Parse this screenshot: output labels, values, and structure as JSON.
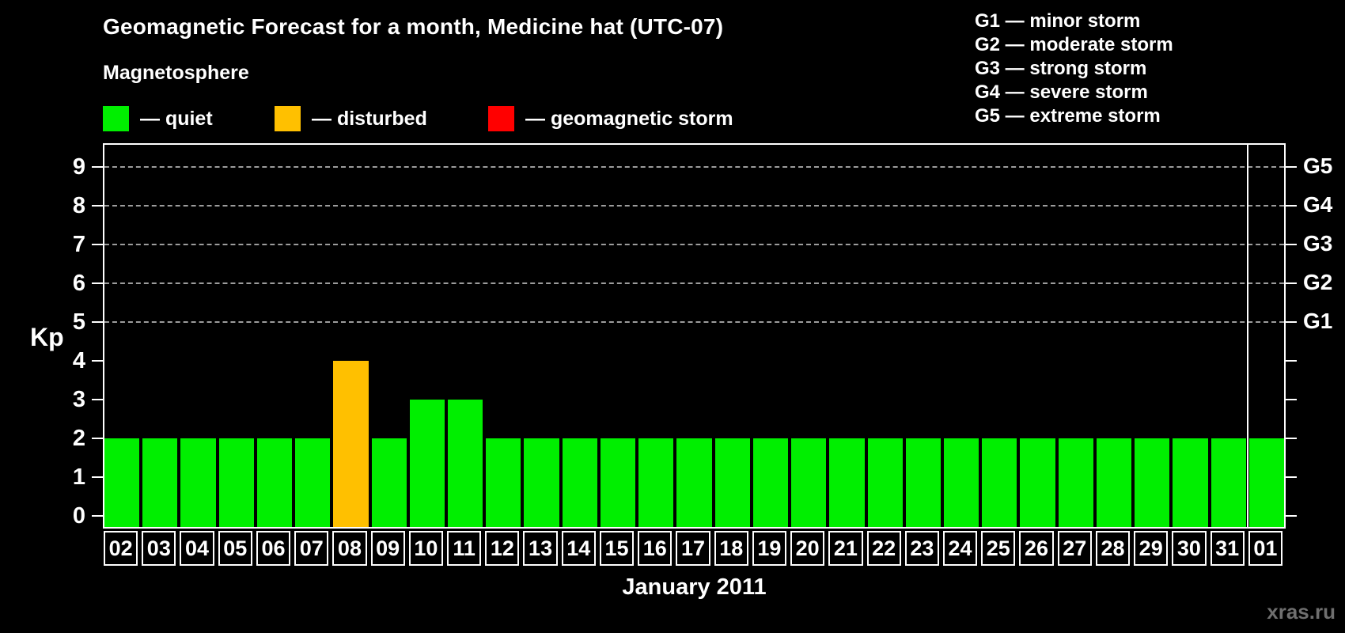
{
  "header": {
    "title": "Geomagnetic Forecast for a month, Medicine hat (UTC-07)",
    "subtitle": "Magnetosphere"
  },
  "legend": {
    "items": [
      {
        "label": "— quiet",
        "color": "#00ef00"
      },
      {
        "label": "— disturbed",
        "color": "#ffc000"
      },
      {
        "label": "— geomagnetic storm",
        "color": "#ff0000"
      }
    ]
  },
  "g_legend": {
    "items": [
      "G1 — minor storm",
      "G2 — moderate storm",
      "G3 — strong storm",
      "G4 — severe storm",
      "G5 — extreme storm"
    ]
  },
  "watermark": {
    "text": "xras.ru"
  },
  "chart_data": {
    "type": "bar",
    "title": "Geomagnetic Forecast for a month, Medicine hat (UTC-07)",
    "xlabel": "January 2011",
    "ylabel": "Kp",
    "ylim": [
      0,
      9.6
    ],
    "yticks": [
      "0",
      "1",
      "2",
      "3",
      "4",
      "5",
      "6",
      "7",
      "8",
      "9"
    ],
    "grid": "dashed horizontal at Kp 5-9 only",
    "legend_position": "top",
    "categories": [
      "02",
      "03",
      "04",
      "05",
      "06",
      "07",
      "08",
      "09",
      "10",
      "11",
      "12",
      "13",
      "14",
      "15",
      "16",
      "17",
      "18",
      "19",
      "20",
      "21",
      "22",
      "23",
      "24",
      "25",
      "26",
      "27",
      "28",
      "29",
      "30",
      "31",
      "01"
    ],
    "values": [
      2,
      2,
      2,
      2,
      2,
      2,
      4,
      2,
      3,
      3,
      2,
      2,
      2,
      2,
      2,
      2,
      2,
      2,
      2,
      2,
      2,
      2,
      2,
      2,
      2,
      2,
      2,
      2,
      2,
      2,
      2
    ],
    "status_colors": {
      "quiet": "#00ef00",
      "disturbed": "#ffc000",
      "storm": "#ff0000"
    },
    "color_rule": "Kp <= 3 quiet (green), Kp = 4 disturbed (orange), Kp >= 5 storm (red)",
    "gridlines_at": [
      5,
      6,
      7,
      8,
      9
    ],
    "right_axis_labels": [
      {
        "label": "G1",
        "value": 5
      },
      {
        "label": "G2",
        "value": 6
      },
      {
        "label": "G3",
        "value": 7
      },
      {
        "label": "G4",
        "value": 8
      },
      {
        "label": "G5",
        "value": 9
      }
    ],
    "month_separator_before_index": 30
  }
}
